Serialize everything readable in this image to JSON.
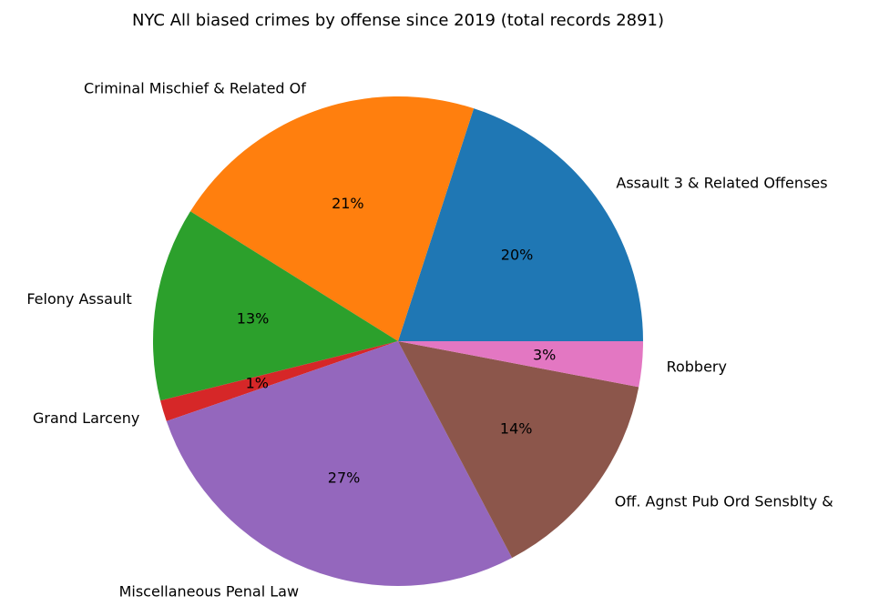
{
  "chart_data": {
    "type": "pie",
    "title": "NYC All biased crimes by offense since 2019 (total records 2891)",
    "start_angle_deg": 0,
    "direction": "counterclockwise",
    "slices": [
      {
        "label": "Assault 3 & Related Offenses",
        "value": 20.0,
        "pct_label": "20%",
        "color": "#1f77b4"
      },
      {
        "label": "Criminal Mischief & Related Of",
        "value": 21.1,
        "pct_label": "21%",
        "color": "#ff7f0e"
      },
      {
        "label": "Felony Assault",
        "value": 12.8,
        "pct_label": "13%",
        "color": "#2ca02c"
      },
      {
        "label": "Grand Larceny",
        "value": 1.4,
        "pct_label": "1%",
        "color": "#d62728"
      },
      {
        "label": "Miscellaneous Penal Law",
        "value": 27.4,
        "pct_label": "27%",
        "color": "#9467bd"
      },
      {
        "label": "Off. Agnst Pub Ord Sensblty &",
        "value": 14.3,
        "pct_label": "14%",
        "color": "#8c564b"
      },
      {
        "label": "Robbery",
        "value": 3.0,
        "pct_label": "3%",
        "color": "#e377c2"
      }
    ]
  }
}
